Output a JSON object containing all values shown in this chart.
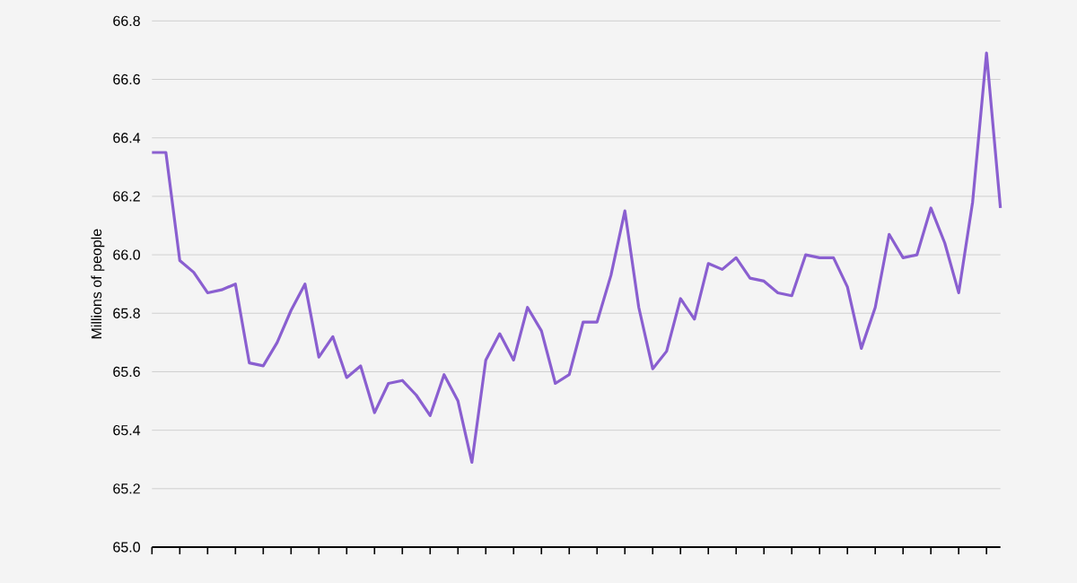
{
  "chart_data": {
    "type": "line",
    "ylabel": "Millions of people",
    "color": "#8a5fd0",
    "line_style": "solid",
    "grid": "y",
    "tick_labels": "y",
    "categories": [
      null,
      null,
      null,
      null,
      null,
      null,
      null,
      null,
      null,
      null,
      null,
      null,
      null,
      null,
      null,
      null,
      null,
      null,
      null,
      null,
      null,
      null,
      null,
      null,
      null,
      null,
      null,
      null,
      null,
      null,
      null,
      null,
      null,
      null,
      null,
      null,
      null,
      null,
      null,
      null,
      null,
      null,
      null,
      null,
      null,
      null,
      null,
      null,
      null,
      null,
      null,
      null,
      null,
      null,
      null,
      null,
      null,
      null,
      null,
      null,
      null,
      null
    ],
    "values": [
      66.35,
      66.35,
      65.98,
      65.94,
      65.87,
      65.88,
      65.9,
      65.63,
      65.62,
      65.7,
      65.81,
      65.9,
      65.65,
      65.72,
      65.58,
      65.62,
      65.46,
      65.56,
      65.57,
      65.52,
      65.45,
      65.59,
      65.5,
      65.29,
      65.64,
      65.73,
      65.64,
      65.82,
      65.74,
      65.56,
      65.59,
      65.77,
      65.77,
      65.93,
      66.15,
      65.82,
      65.61,
      65.67,
      65.85,
      65.78,
      65.97,
      65.95,
      65.99,
      65.92,
      65.91,
      65.87,
      65.86,
      66.0,
      65.99,
      65.99,
      65.89,
      65.68,
      65.82,
      66.07,
      65.99,
      66.0,
      66.16,
      66.04,
      65.87,
      66.18,
      66.69,
      66.16
    ],
    "ylim": [
      65.0,
      66.8
    ],
    "yticks": [
      {
        "value": 65.0,
        "label": "65.0"
      },
      {
        "value": 65.2,
        "label": "65.2"
      },
      {
        "value": 65.4,
        "label": "65.4"
      },
      {
        "value": 65.6,
        "label": "65.6"
      },
      {
        "value": 65.8,
        "label": "65.8"
      },
      {
        "value": 66.0,
        "label": "66.0"
      },
      {
        "value": 66.2,
        "label": "66.2"
      },
      {
        "value": 66.4,
        "label": "66.4"
      },
      {
        "value": 66.6,
        "label": "66.6"
      },
      {
        "value": 66.8,
        "label": "66.8"
      }
    ]
  }
}
